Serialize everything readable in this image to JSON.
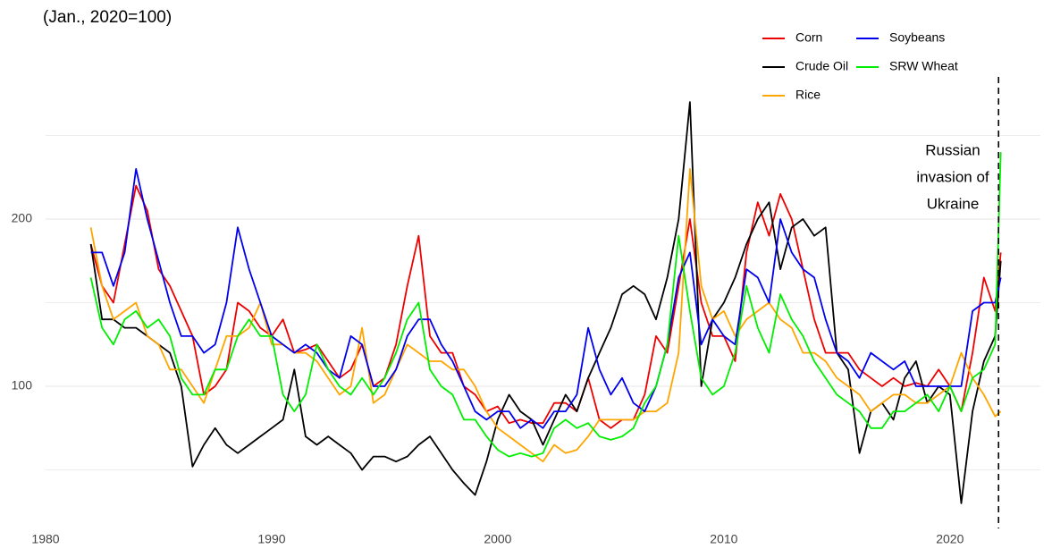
{
  "chart_data": {
    "type": "line",
    "subtitle": "(Jan., 2020=100)",
    "x": [
      1982,
      1982.5,
      1983,
      1983.5,
      1984,
      1984.5,
      1985,
      1985.5,
      1986,
      1986.5,
      1987,
      1987.5,
      1988,
      1988.5,
      1989,
      1989.5,
      1990,
      1990.5,
      1991,
      1991.5,
      1992,
      1992.5,
      1993,
      1993.5,
      1994,
      1994.5,
      1995,
      1995.5,
      1996,
      1996.5,
      1997,
      1997.5,
      1998,
      1998.5,
      1999,
      1999.5,
      2000,
      2000.5,
      2001,
      2001.5,
      2002,
      2002.5,
      2003,
      2003.5,
      2004,
      2004.5,
      2005,
      2005.5,
      2006,
      2006.5,
      2007,
      2007.5,
      2008,
      2008.5,
      2009,
      2009.5,
      2010,
      2010.5,
      2011,
      2011.5,
      2012,
      2012.5,
      2013,
      2013.5,
      2014,
      2014.5,
      2015,
      2015.5,
      2016,
      2016.5,
      2017,
      2017.5,
      2018,
      2018.5,
      2019,
      2019.5,
      2020,
      2020.5,
      2021,
      2021.5,
      2022,
      2022.25
    ],
    "series": [
      {
        "name": "Corn",
        "color": "#ee0000",
        "values": [
          185,
          160,
          150,
          185,
          220,
          205,
          170,
          160,
          145,
          130,
          95,
          100,
          110,
          150,
          145,
          135,
          130,
          140,
          120,
          122,
          125,
          115,
          105,
          110,
          125,
          100,
          105,
          125,
          160,
          190,
          130,
          120,
          120,
          100,
          95,
          85,
          88,
          78,
          80,
          78,
          78,
          90,
          90,
          85,
          105,
          80,
          75,
          80,
          80,
          95,
          130,
          120,
          160,
          200,
          150,
          130,
          130,
          115,
          180,
          210,
          190,
          215,
          200,
          170,
          140,
          120,
          120,
          120,
          110,
          105,
          100,
          105,
          100,
          102,
          100,
          110,
          100,
          85,
          120,
          165,
          145,
          180
        ]
      },
      {
        "name": "Crude Oil",
        "color": "#000000",
        "values": [
          185,
          140,
          140,
          135,
          135,
          130,
          125,
          120,
          100,
          52,
          65,
          75,
          65,
          60,
          65,
          70,
          75,
          80,
          110,
          70,
          65,
          70,
          65,
          60,
          50,
          58,
          58,
          55,
          58,
          65,
          70,
          60,
          50,
          42,
          35,
          55,
          80,
          95,
          85,
          80,
          65,
          80,
          95,
          85,
          105,
          120,
          135,
          155,
          160,
          155,
          140,
          165,
          200,
          270,
          100,
          140,
          150,
          165,
          185,
          200,
          210,
          170,
          195,
          200,
          190,
          195,
          120,
          110,
          60,
          85,
          90,
          80,
          105,
          115,
          90,
          100,
          95,
          30,
          85,
          115,
          130,
          175
        ]
      },
      {
        "name": "Rice",
        "color": "#ffa500",
        "values": [
          195,
          160,
          140,
          145,
          150,
          130,
          125,
          110,
          110,
          100,
          90,
          110,
          130,
          130,
          135,
          150,
          125,
          125,
          120,
          120,
          115,
          105,
          95,
          100,
          135,
          90,
          95,
          110,
          125,
          120,
          115,
          115,
          110,
          110,
          100,
          85,
          75,
          70,
          65,
          60,
          55,
          65,
          60,
          62,
          70,
          80,
          80,
          80,
          80,
          85,
          85,
          90,
          120,
          230,
          160,
          140,
          145,
          130,
          140,
          145,
          150,
          140,
          135,
          120,
          120,
          115,
          105,
          100,
          95,
          85,
          90,
          95,
          95,
          90,
          90,
          95,
          100,
          120,
          105,
          95,
          82,
          85
        ]
      },
      {
        "name": "Soybeans",
        "color": "#0000ee",
        "values": [
          180,
          180,
          160,
          180,
          230,
          200,
          175,
          150,
          130,
          130,
          120,
          125,
          150,
          195,
          170,
          150,
          130,
          125,
          120,
          125,
          120,
          110,
          105,
          130,
          125,
          100,
          100,
          110,
          130,
          140,
          140,
          125,
          115,
          100,
          85,
          80,
          85,
          85,
          75,
          80,
          75,
          85,
          85,
          95,
          135,
          110,
          95,
          105,
          90,
          85,
          100,
          125,
          165,
          180,
          125,
          140,
          130,
          125,
          170,
          165,
          150,
          200,
          180,
          170,
          165,
          140,
          120,
          115,
          105,
          120,
          115,
          110,
          115,
          100,
          100,
          100,
          100,
          100,
          145,
          150,
          150,
          165
        ]
      },
      {
        "name": "SRW Wheat",
        "color": "#00ee00",
        "values": [
          165,
          135,
          125,
          140,
          145,
          135,
          140,
          130,
          105,
          95,
          95,
          110,
          110,
          130,
          140,
          130,
          130,
          95,
          85,
          95,
          125,
          110,
          100,
          95,
          105,
          95,
          105,
          120,
          140,
          150,
          110,
          100,
          95,
          80,
          80,
          70,
          62,
          58,
          60,
          58,
          60,
          75,
          80,
          75,
          78,
          70,
          68,
          70,
          75,
          90,
          100,
          125,
          190,
          145,
          105,
          95,
          100,
          120,
          160,
          135,
          120,
          155,
          140,
          130,
          115,
          105,
          95,
          90,
          85,
          75,
          75,
          85,
          85,
          90,
          95,
          85,
          100,
          85,
          105,
          110,
          125,
          240
        ]
      }
    ],
    "xlim": [
      1980,
      2024
    ],
    "xticks": [
      1980,
      1990,
      2000,
      2010,
      2020
    ],
    "ylim": [
      15,
      285
    ],
    "yticks": [
      100,
      200
    ],
    "minor_yticks": [
      50,
      150,
      250
    ],
    "grid": true,
    "legend": "top-right",
    "annotation": {
      "x": 2022.15,
      "lines": [
        "Russian",
        "invasion of",
        "Ukraine"
      ]
    }
  }
}
